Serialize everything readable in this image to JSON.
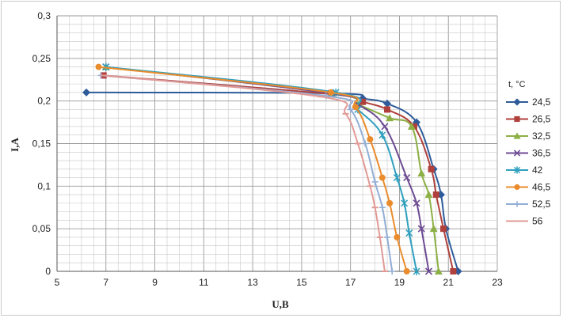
{
  "chart_data": {
    "type": "line",
    "xlabel": "U,B",
    "ylabel": "I,A",
    "xlim": [
      5,
      23
    ],
    "ylim": [
      0,
      0.3
    ],
    "x_major_ticks": [
      "5",
      "7",
      "9",
      "11",
      "13",
      "15",
      "17",
      "19",
      "21",
      "23"
    ],
    "y_major_ticks": [
      "0",
      "0,05",
      "0,1",
      "0,15",
      "0,2",
      "0,25",
      "0,3"
    ],
    "grid": true,
    "legend_title": "t, °C",
    "legend_position": "right",
    "series": [
      {
        "name": "24,5",
        "color": "#2e5c9a",
        "marker": "diamond",
        "points": [
          [
            6.2,
            0.21
          ],
          [
            16.3,
            0.209
          ],
          [
            17.5,
            0.203
          ],
          [
            18.5,
            0.197
          ],
          [
            19.7,
            0.175
          ],
          [
            20.4,
            0.12
          ],
          [
            20.7,
            0.09
          ],
          [
            20.9,
            0.05
          ],
          [
            21.4,
            0
          ]
        ]
      },
      {
        "name": "26,5",
        "color": "#b0403c",
        "marker": "square",
        "points": [
          [
            6.9,
            0.23
          ],
          [
            16.2,
            0.208
          ],
          [
            17.5,
            0.199
          ],
          [
            18.5,
            0.19
          ],
          [
            19.6,
            0.17
          ],
          [
            20.3,
            0.12
          ],
          [
            20.5,
            0.09
          ],
          [
            20.8,
            0.05
          ],
          [
            21.2,
            0
          ]
        ]
      },
      {
        "name": "32,5",
        "color": "#8cb045",
        "marker": "triangle",
        "points": [
          [
            7,
            0.24
          ],
          [
            16.2,
            0.209
          ],
          [
            17.3,
            0.196
          ],
          [
            18.6,
            0.18
          ],
          [
            19.5,
            0.17
          ],
          [
            19.9,
            0.115
          ],
          [
            20.2,
            0.09
          ],
          [
            20.4,
            0.05
          ],
          [
            20.6,
            0
          ]
        ]
      },
      {
        "name": "36,5",
        "color": "#6d4a93",
        "marker": "x",
        "points": [
          [
            7,
            0.24
          ],
          [
            16.2,
            0.209
          ],
          [
            17.3,
            0.196
          ],
          [
            18.4,
            0.17
          ],
          [
            19.3,
            0.11
          ],
          [
            19.7,
            0.08
          ],
          [
            19.9,
            0.05
          ],
          [
            20.2,
            0
          ]
        ]
      },
      {
        "name": "42",
        "color": "#2fa0bf",
        "marker": "star",
        "points": [
          [
            7,
            0.24
          ],
          [
            16.4,
            0.21
          ],
          [
            17.3,
            0.19
          ],
          [
            18.3,
            0.16
          ],
          [
            18.9,
            0.11
          ],
          [
            19.2,
            0.08
          ],
          [
            19.4,
            0.045
          ],
          [
            19.7,
            0
          ]
        ]
      },
      {
        "name": "46,5",
        "color": "#ea8c2c",
        "marker": "circle",
        "points": [
          [
            6.7,
            0.24
          ],
          [
            16.2,
            0.21
          ],
          [
            17.2,
            0.193
          ],
          [
            17.8,
            0.155
          ],
          [
            18.3,
            0.11
          ],
          [
            18.6,
            0.08
          ],
          [
            18.9,
            0.04
          ],
          [
            19.3,
            0
          ]
        ]
      },
      {
        "name": "52,5",
        "color": "#93aed6",
        "marker": "plus",
        "points": [
          [
            6.8,
            0.23
          ],
          [
            16.0,
            0.206
          ],
          [
            17.0,
            0.19
          ],
          [
            17.6,
            0.15
          ],
          [
            18,
            0.105
          ],
          [
            18.3,
            0.075
          ],
          [
            18.5,
            0.04
          ],
          [
            18.7,
            0
          ]
        ]
      },
      {
        "name": "56",
        "color": "#e19a96",
        "marker": "dash",
        "points": [
          [
            6.9,
            0.23
          ],
          [
            15.8,
            0.205
          ],
          [
            16.8,
            0.185
          ],
          [
            17.3,
            0.15
          ],
          [
            17.8,
            0.1
          ],
          [
            18.0,
            0.075
          ],
          [
            18.2,
            0.04
          ],
          [
            18.4,
            0
          ]
        ]
      }
    ]
  }
}
